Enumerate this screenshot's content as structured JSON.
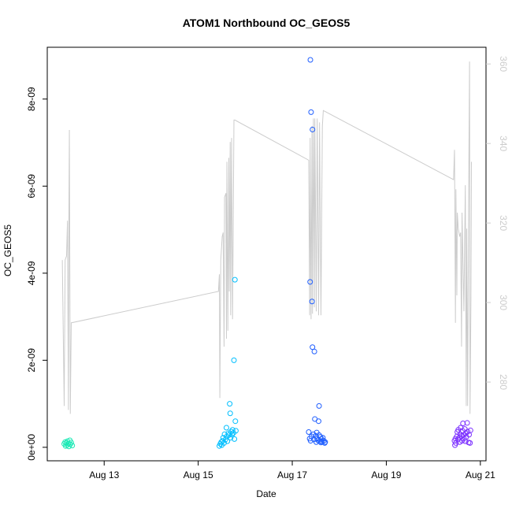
{
  "chart_data": {
    "type": "scatter",
    "title": "ATOM1 Northbound OC_GEOS5",
    "x_label": "Date",
    "y_label": "OC_GEOS5",
    "xlim": [
      11.79,
      21.12
    ],
    "xticks": [
      {
        "value": 13,
        "label": "Aug 13"
      },
      {
        "value": 15,
        "label": "Aug 15"
      },
      {
        "value": 17,
        "label": "Aug 17"
      },
      {
        "value": 19,
        "label": "Aug 19"
      },
      {
        "value": 21,
        "label": "Aug 21"
      }
    ],
    "ylim": [
      -3.1e-10,
      9.19e-09
    ],
    "yticks": [
      {
        "value": 0,
        "label": "0e+00"
      },
      {
        "value": 2e-09,
        "label": "2e-09"
      },
      {
        "value": 4e-09,
        "label": "4e-09"
      },
      {
        "value": 6e-09,
        "label": "6e-09"
      },
      {
        "value": 8e-09,
        "label": "8e-09"
      }
    ],
    "y2lim": [
      260.2,
      364.2
    ],
    "y2ticks": [
      280,
      300,
      320,
      340,
      360
    ],
    "y2_color": "#cccccc",
    "series": [
      {
        "color": "#1de9b6",
        "x": [
          12.15,
          12.17,
          12.18,
          12.2,
          12.21,
          12.22,
          12.24,
          12.25,
          12.27,
          12.28,
          12.3,
          12.32
        ],
        "values": [
          8e-11,
          1.2e-10,
          3e-11,
          1e-10,
          5e-11,
          1.4e-10,
          9e-11,
          2e-11,
          1.6e-10,
          7e-11,
          1.1e-10,
          4e-11
        ]
      },
      {
        "color": "#00bfff",
        "x": [
          15.45,
          15.47,
          15.49,
          15.5,
          15.52,
          15.53,
          15.55,
          15.56,
          15.58,
          15.6,
          15.61,
          15.62,
          15.64,
          15.65,
          15.67,
          15.68,
          15.69,
          15.7,
          15.72,
          15.73,
          15.75,
          15.76,
          15.77,
          15.78,
          15.79,
          15.8
        ],
        "values": [
          3e-11,
          8e-11,
          1.2e-10,
          5e-11,
          1.5e-10,
          2.2e-10,
          1e-10,
          3e-10,
          1.8e-10,
          4.5e-10,
          2.5e-10,
          1.4e-10,
          3.2e-10,
          2.8e-10,
          1e-09,
          7.8e-10,
          2.2e-10,
          3.6e-10,
          2.9e-10,
          4e-10,
          3.3e-10,
          2e-09,
          1.9e-10,
          3.85e-09,
          6e-10,
          3.8e-10
        ]
      },
      {
        "color": "#1f5eff",
        "x": [
          17.35,
          17.37,
          17.38,
          17.385,
          17.39,
          17.4,
          17.41,
          17.42,
          17.43,
          17.43,
          17.45,
          17.46,
          17.47,
          17.48,
          17.5,
          17.51,
          17.52,
          17.53,
          17.55,
          17.56,
          17.57,
          17.57,
          17.58,
          17.6,
          17.61,
          17.62,
          17.63,
          17.65,
          17.67,
          17.69,
          17.7
        ],
        "values": [
          3.5e-10,
          2e-10,
          3.8e-09,
          8.9e-09,
          1.5e-10,
          7.7e-09,
          2.5e-10,
          3.35e-09,
          7.3e-09,
          2.3e-09,
          3e-10,
          1.8e-10,
          2.2e-09,
          6.5e-10,
          2.6e-10,
          1.2e-10,
          3.4e-10,
          2e-10,
          1.6e-10,
          6e-10,
          9.5e-10,
          2.8e-10,
          1.4e-10,
          2.4e-10,
          1.1e-10,
          1.9e-10,
          1.3e-10,
          2.2e-10,
          1.5e-10,
          1e-10,
          1.2e-10
        ]
      },
      {
        "color": "#7b2fff",
        "x": [
          20.45,
          20.46,
          20.47,
          20.48,
          20.5,
          20.51,
          20.52,
          20.53,
          20.55,
          20.56,
          20.57,
          20.58,
          20.6,
          20.61,
          20.62,
          20.63,
          20.64,
          20.65,
          20.67,
          20.68,
          20.69,
          20.7,
          20.72,
          20.73,
          20.75,
          20.76,
          20.78,
          20.79
        ],
        "values": [
          1.5e-10,
          5e-11,
          2e-10,
          1e-10,
          2.5e-10,
          3.5e-10,
          1.8e-10,
          4e-10,
          2.2e-10,
          1.2e-10,
          3e-10,
          4.5e-10,
          2.6e-10,
          1.5e-10,
          3.8e-10,
          5.5e-10,
          2.8e-10,
          2e-10,
          4.2e-10,
          1.4e-10,
          3.2e-10,
          2.4e-10,
          5.6e-10,
          3.6e-10,
          1.1e-10,
          2.9e-10,
          1e-10,
          3.9e-10
        ]
      },
      {
        "type": "line",
        "axis": "y2",
        "color": "#cccccc",
        "x": [
          12.11,
          12.15,
          12.17,
          12.2,
          12.22,
          12.24,
          12.25,
          12.26,
          12.28,
          12.3,
          15.43,
          15.45,
          15.46,
          15.48,
          15.51,
          15.53,
          15.55,
          15.56,
          15.59,
          15.6,
          15.61,
          15.63,
          15.65,
          15.66,
          15.68,
          15.69,
          15.71,
          15.73,
          15.76,
          15.78,
          17.35,
          17.37,
          17.38,
          17.4,
          17.42,
          17.43,
          17.45,
          17.47,
          17.48,
          17.51,
          17.53,
          17.56,
          17.58,
          17.61,
          17.64,
          17.66,
          20.43,
          20.45,
          20.47,
          20.48,
          20.5,
          20.51,
          20.53,
          20.56,
          20.58,
          20.6,
          20.61,
          20.65,
          20.68,
          20.7,
          20.71,
          20.73,
          20.75,
          20.77,
          20.78,
          20.8,
          20.81
        ],
        "values": [
          310.7,
          274,
          310.7,
          311.7,
          320.6,
          273,
          320.6,
          343.4,
          272,
          294.9,
          302.8,
          307.1,
          276,
          310.7,
          316.6,
          317.6,
          288.9,
          326.5,
          327.5,
          290.9,
          335.4,
          292.9,
          336.4,
          302.8,
          340.4,
          296.8,
          341.4,
          295.8,
          345.9,
          345.9,
          335.8,
          296.8,
          341.4,
          295.8,
          344.4,
          297.2,
          346.3,
          298.8,
          346.3,
          297.8,
          346.3,
          296.8,
          345.3,
          296.8,
          344.4,
          348.3,
          330.9,
          338.4,
          294.9,
          328.5,
          301.8,
          322.6,
          318.6,
          316.6,
          317.6,
          288.9,
          322.6,
          297.8,
          329.5,
          274,
          318.6,
          274,
          324.6,
          360.6,
          272,
          300.8,
          335.4
        ]
      }
    ]
  }
}
